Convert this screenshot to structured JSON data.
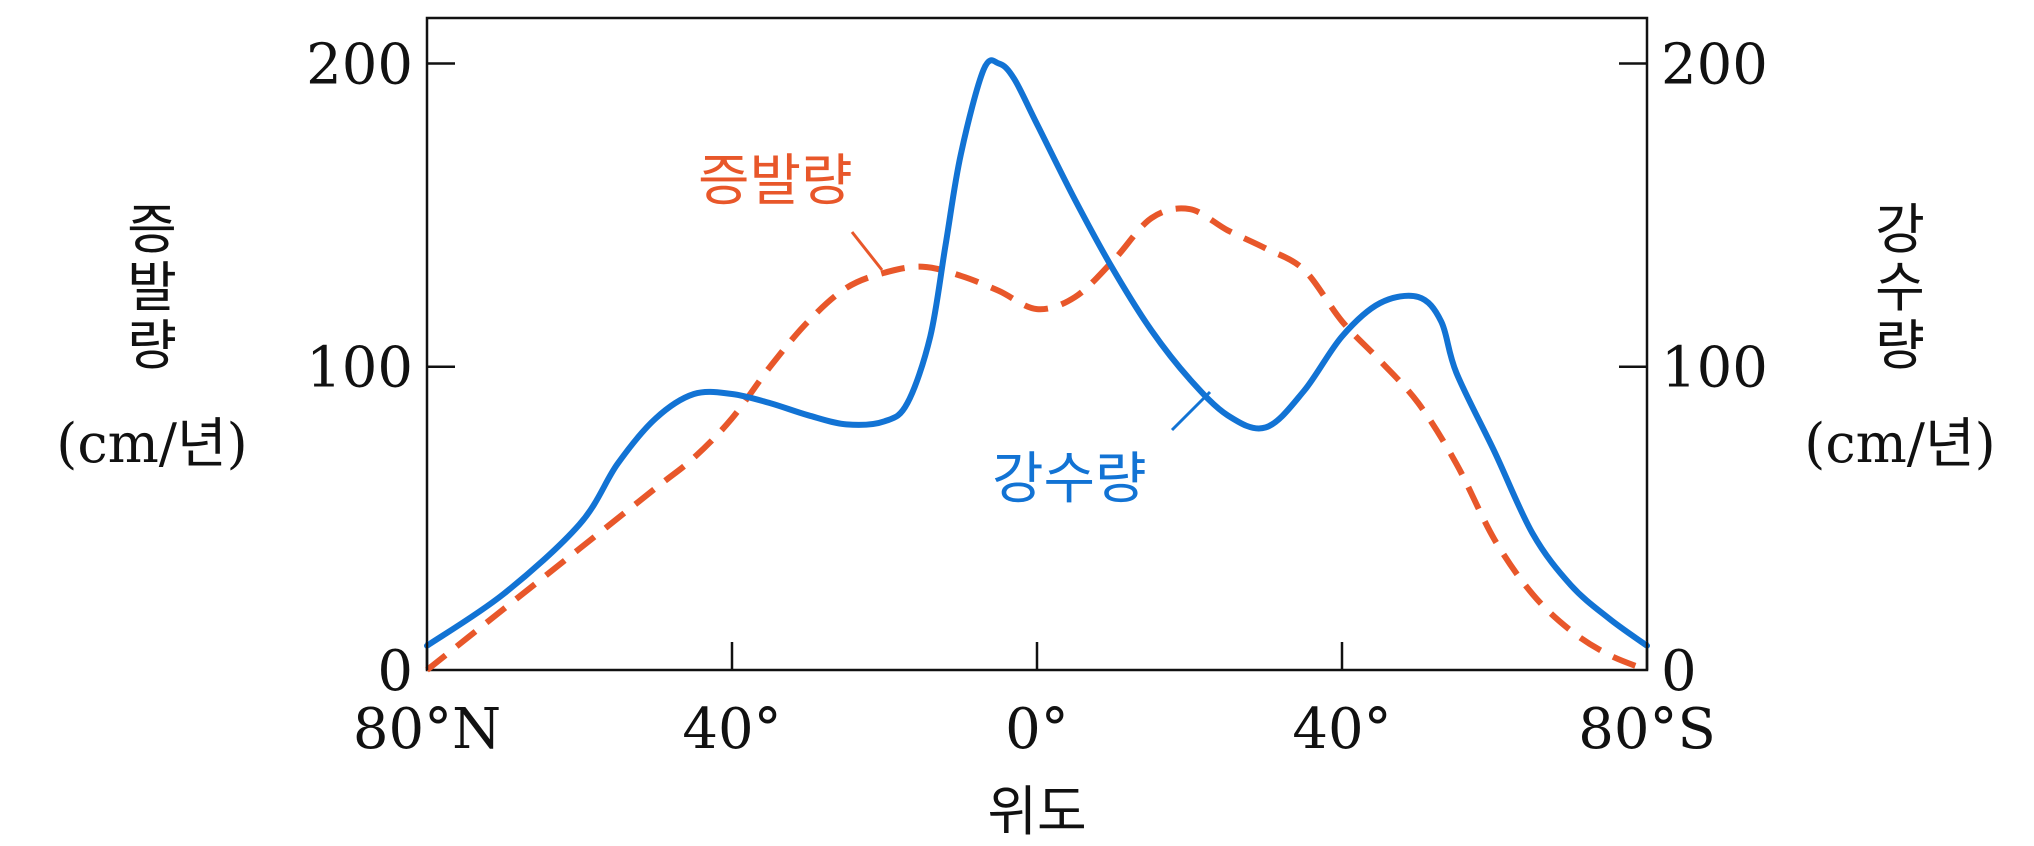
{
  "chart_data": {
    "type": "line",
    "xlabel": "위도",
    "x_tick_labels": [
      "80°N",
      "40°",
      "0°",
      "40°",
      "80°S"
    ],
    "x_ticks": [
      -80,
      -40,
      0,
      40,
      80
    ],
    "xlim": [
      -80,
      80
    ],
    "ylim": [
      0,
      215
    ],
    "y_ticks": [
      0,
      100,
      200
    ],
    "y_tick_labels": [
      "0",
      "100",
      "200"
    ],
    "ylabel_left": {
      "text": "증발량",
      "unit": "(cm/년)"
    },
    "ylabel_right": {
      "text": "강수량",
      "unit": "(cm/년)"
    },
    "grid": false,
    "series": [
      {
        "name": "증발량",
        "color": "#e8572a",
        "style": "dashed",
        "x": [
          -80,
          -70,
          -60,
          -50,
          -45,
          -40,
          -35,
          -30,
          -25,
          -20,
          -15,
          -10,
          -5,
          0,
          5,
          10,
          15,
          20,
          25,
          30,
          35,
          40,
          45,
          50,
          55,
          60,
          65,
          70,
          75,
          80
        ],
        "y": [
          0,
          20,
          40,
          60,
          70,
          83,
          100,
          115,
          126,
          131,
          133,
          130,
          125,
          119,
          123,
          135,
          149,
          152,
          145,
          139,
          132,
          115,
          102,
          88,
          68,
          43,
          25,
          13,
          5,
          0
        ]
      },
      {
        "name": "강수량",
        "color": "#1273d4",
        "style": "solid",
        "x": [
          -80,
          -70,
          -60,
          -55,
          -50,
          -45,
          -40,
          -35,
          -30,
          -25,
          -20,
          -17,
          -14,
          -12,
          -10,
          -7,
          -5,
          -3,
          0,
          5,
          10,
          15,
          20,
          25,
          30,
          35,
          40,
          45,
          50,
          53,
          55,
          60,
          65,
          70,
          75,
          80
        ],
        "y": [
          8,
          25,
          48,
          68,
          83,
          91,
          91,
          88,
          84,
          81,
          82,
          88,
          110,
          140,
          170,
          198,
          200,
          195,
          180,
          155,
          132,
          112,
          96,
          84,
          80,
          92,
          110,
          121,
          123,
          115,
          98,
          72,
          45,
          28,
          17,
          8
        ]
      }
    ]
  }
}
